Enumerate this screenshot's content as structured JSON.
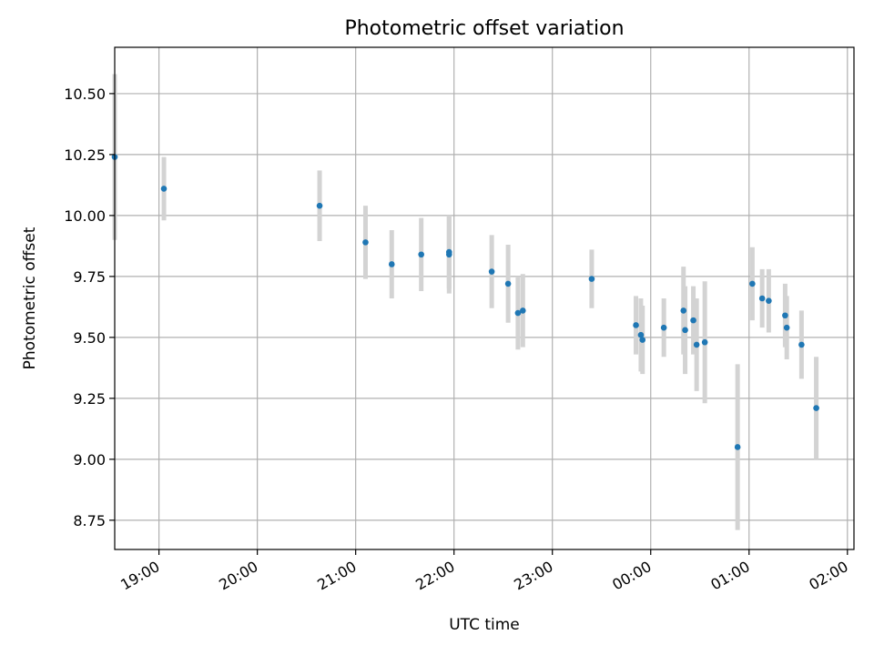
{
  "chart_data": {
    "type": "scatter",
    "title": "Photometric offset variation",
    "xlabel": "UTC time",
    "ylabel": "Photometric offset",
    "x_ticks": [
      "19:00",
      "20:00",
      "21:00",
      "22:00",
      "23:00",
      "00:00",
      "01:00",
      "02:00"
    ],
    "y_ticks": [
      "8.75",
      "9.00",
      "9.25",
      "9.50",
      "9.75",
      "10.00",
      "10.25",
      "10.50"
    ],
    "grid": true,
    "point_color": "#1f77b4",
    "errorbar_color": "#d3d3d3",
    "points": [
      {
        "x": "18:33",
        "y": 10.24,
        "err": 0.34
      },
      {
        "x": "19:03",
        "y": 10.11,
        "err": 0.13
      },
      {
        "x": "20:38",
        "y": 10.04,
        "err": 0.145
      },
      {
        "x": "21:06",
        "y": 9.89,
        "err": 0.15
      },
      {
        "x": "21:22",
        "y": 9.8,
        "err": 0.14
      },
      {
        "x": "21:40",
        "y": 9.84,
        "err": 0.15
      },
      {
        "x": "21:57",
        "y": 9.84,
        "err": 0.16
      },
      {
        "x": "21:57",
        "y": 9.85,
        "err": 0.15
      },
      {
        "x": "22:23",
        "y": 9.77,
        "err": 0.15
      },
      {
        "x": "22:33",
        "y": 9.72,
        "err": 0.16
      },
      {
        "x": "22:39",
        "y": 9.6,
        "err": 0.15
      },
      {
        "x": "22:42",
        "y": 9.61,
        "err": 0.15
      },
      {
        "x": "23:24",
        "y": 9.74,
        "err": 0.12
      },
      {
        "x": "23:51",
        "y": 9.55,
        "err": 0.12
      },
      {
        "x": "23:54",
        "y": 9.51,
        "err": 0.15
      },
      {
        "x": "23:55",
        "y": 9.49,
        "err": 0.14
      },
      {
        "x": "00:08",
        "y": 9.54,
        "err": 0.12
      },
      {
        "x": "00:20",
        "y": 9.61,
        "err": 0.18
      },
      {
        "x": "00:21",
        "y": 9.53,
        "err": 0.18
      },
      {
        "x": "00:26",
        "y": 9.57,
        "err": 0.14
      },
      {
        "x": "00:28",
        "y": 9.47,
        "err": 0.19
      },
      {
        "x": "00:33",
        "y": 9.48,
        "err": 0.25
      },
      {
        "x": "00:53",
        "y": 9.05,
        "err": 0.34
      },
      {
        "x": "01:02",
        "y": 9.72,
        "err": 0.15
      },
      {
        "x": "01:08",
        "y": 9.66,
        "err": 0.12
      },
      {
        "x": "01:12",
        "y": 9.65,
        "err": 0.13
      },
      {
        "x": "01:22",
        "y": 9.59,
        "err": 0.13
      },
      {
        "x": "01:23",
        "y": 9.54,
        "err": 0.13
      },
      {
        "x": "01:32",
        "y": 9.47,
        "err": 0.14
      },
      {
        "x": "01:41",
        "y": 9.21,
        "err": 0.21
      }
    ]
  }
}
